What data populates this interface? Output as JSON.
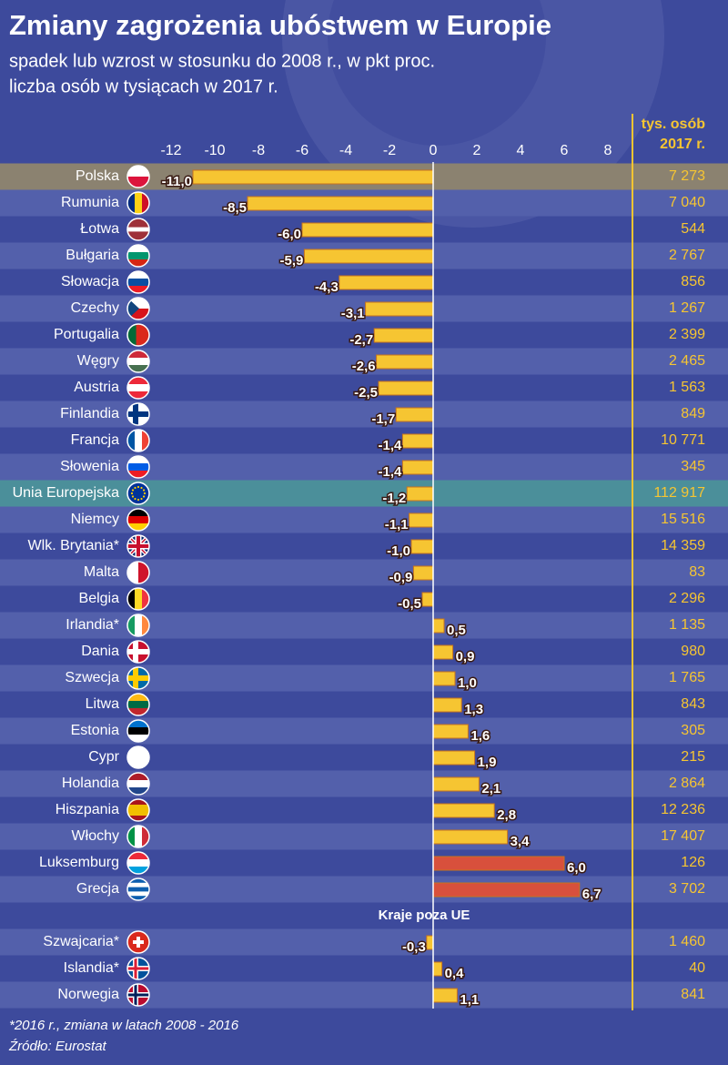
{
  "chart_data": {
    "type": "bar",
    "title": "Zmiany zagrożenia ubóstwem w Europie",
    "subtitle": [
      "spadek lub wzrost w stosunku do 2008 r., w pkt proc.",
      "liczba osób w tysiącach w 2017 r."
    ],
    "categories": [
      "Polska",
      "Rumunia",
      "Łotwa",
      "Bułgaria",
      "Słowacja",
      "Czechy",
      "Portugalia",
      "Węgry",
      "Austria",
      "Finlandia",
      "Francja",
      "Słowenia",
      "Unia Europejska",
      "Niemcy",
      "Wlk.  Brytania*",
      "Malta",
      "Belgia",
      "Irlandia*",
      "Dania",
      "Szwecja",
      "Litwa",
      "Estonia",
      "Cypr",
      "Holandia",
      "Hiszpania",
      "Włochy",
      "Luksemburg",
      "Grecja"
    ],
    "values": [
      -11.0,
      -8.5,
      -6.0,
      -5.9,
      -4.3,
      -3.1,
      -2.7,
      -2.6,
      -2.5,
      -1.7,
      -1.4,
      -1.4,
      -1.2,
      -1.1,
      -1.0,
      -0.9,
      -0.5,
      0.5,
      0.9,
      1.0,
      1.3,
      1.6,
      1.9,
      2.1,
      2.8,
      3.4,
      6.0,
      6.7
    ],
    "value_labels": [
      "-11,0",
      "-8,5",
      "-6,0",
      "-5,9",
      "-4,3",
      "-3,1",
      "-2,7",
      "-2,6",
      "-2,5",
      "-1,7",
      "-1,4",
      "-1,4",
      "-1,2",
      "-1,1",
      "-1,0",
      "-0,9",
      "-0,5",
      "0,5",
      "0,9",
      "1,0",
      "1,3",
      "1,6",
      "1,9",
      "2,1",
      "2,8",
      "3,4",
      "6,0",
      "6,7"
    ],
    "colors": [
      "#f6c532",
      "#f6c532",
      "#f6c532",
      "#f6c532",
      "#f6c532",
      "#f6c532",
      "#f6c532",
      "#f6c532",
      "#f6c532",
      "#f6c532",
      "#f6c532",
      "#f6c532",
      "#f6c532",
      "#f6c532",
      "#f6c532",
      "#f6c532",
      "#f6c532",
      "#f6c532",
      "#f6c532",
      "#f6c532",
      "#f6c532",
      "#f6c532",
      "#f6c532",
      "#f6c532",
      "#f6c532",
      "#f6c532",
      "#d8503c",
      "#d8503c"
    ],
    "persons_title": [
      "tys. osób",
      "2017 r."
    ],
    "persons": [
      {
        "value": 7273,
        "label": "7 273"
      },
      {
        "value": 7040,
        "label": "7 040"
      },
      544,
      {
        "value": 2767,
        "label": "2 767"
      },
      856,
      {
        "value": 1267,
        "label": "1 267"
      },
      {
        "value": 2399,
        "label": "2 399"
      },
      {
        "value": 2465,
        "label": "2 465"
      },
      {
        "value": 1563,
        "label": "1 563"
      },
      849,
      {
        "value": 10771,
        "label": "10 771"
      },
      345,
      {
        "value": 112917,
        "label": "112 917"
      },
      {
        "value": 15516,
        "label": "15 516"
      },
      {
        "value": 14359,
        "label": "14 359"
      },
      83,
      {
        "value": 2296,
        "label": "2 296"
      },
      {
        "value": 1135,
        "label": "1 135"
      },
      980,
      {
        "value": 1765,
        "label": "1 765"
      },
      843,
      305,
      215,
      {
        "value": 2864,
        "label": "2 864"
      },
      {
        "value": 12236,
        "label": "12 236"
      },
      {
        "value": 17407,
        "label": "17 407"
      },
      126,
      {
        "value": 3702,
        "label": "3 702"
      }
    ],
    "other_group": {
      "title": "Kraje poza UE",
      "categories": [
        "Szwajcaria*",
        "Islandia*",
        "Norwegia"
      ],
      "values": [
        -0.3,
        0.4,
        1.1
      ],
      "value_labels": [
        "-0,3",
        "0,4",
        "1,1"
      ],
      "persons": [
        {
          "value": 1460,
          "label": "1 460"
        },
        40,
        841
      ]
    },
    "xlim": [
      -12,
      8
    ],
    "xticks": [
      -12,
      -10,
      -8,
      -6,
      -4,
      -2,
      0,
      2,
      4,
      6,
      8
    ],
    "footnotes": [
      "*2016 r., zmiana w latach 2008 - 2016",
      "Źródło: Eurostat"
    ]
  }
}
